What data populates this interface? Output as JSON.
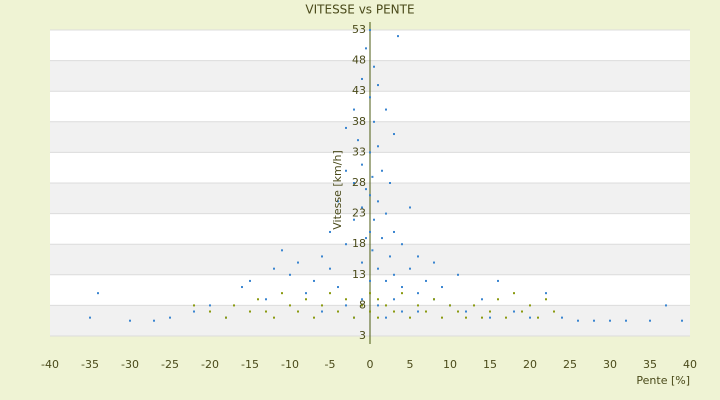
{
  "chart_data": {
    "type": "scatter",
    "title": "VITESSE vs PENTE",
    "x_label": "Pente [%]",
    "y_label": "Vitesse [km/h]",
    "xlim": [
      -40,
      40
    ],
    "xticks": [
      -40,
      -35,
      -30,
      -25,
      -20,
      -15,
      -10,
      -5,
      0,
      5,
      10,
      15,
      20,
      25,
      30,
      35,
      40
    ],
    "ylim": [
      3,
      53
    ],
    "yticks": [
      3,
      8,
      13,
      18,
      23,
      28,
      33,
      38,
      43,
      48,
      53
    ],
    "grid": true,
    "series": [
      {
        "color": "#3a85d0",
        "x": [
          -35,
          -34,
          -30,
          -27,
          -25,
          -22,
          -20,
          -18,
          -16,
          -15,
          -13,
          -12,
          -11,
          -10,
          -9,
          -8,
          -7,
          -6,
          -5,
          -5,
          -4,
          -4,
          -3,
          -3,
          -3,
          -2,
          -2,
          -2,
          -1.5,
          -1,
          -1,
          -1,
          -1,
          -0.5,
          -0.5,
          -0.5,
          0,
          0,
          0,
          0,
          0,
          0,
          0.3,
          0.3,
          0.5,
          0.5,
          0.5,
          1,
          1,
          1,
          1,
          1.5,
          1.5,
          2,
          2,
          2,
          2.5,
          2.5,
          3,
          3,
          3,
          3.5,
          4,
          4,
          5,
          5,
          6,
          6,
          7,
          8,
          8,
          9,
          10,
          11,
          12,
          14,
          15,
          16,
          18,
          20,
          22,
          24,
          26,
          28,
          30,
          32,
          35,
          37,
          39,
          -3,
          -2,
          -1,
          0,
          1,
          2,
          3,
          4,
          -6,
          6
        ],
        "values": [
          6,
          10,
          5.5,
          5.5,
          6,
          7,
          8,
          6,
          11,
          12,
          9,
          14,
          17,
          13,
          15,
          10,
          12,
          16,
          14,
          20,
          11,
          25,
          18,
          30,
          37,
          22,
          28,
          40,
          35,
          15,
          24,
          31,
          45,
          19,
          27,
          50,
          12,
          20,
          26,
          33,
          42,
          53,
          17,
          29,
          22,
          38,
          47,
          14,
          25,
          34,
          44,
          19,
          30,
          12,
          23,
          40,
          16,
          28,
          13,
          20,
          36,
          52,
          11,
          18,
          14,
          24,
          10,
          16,
          12,
          9,
          15,
          11,
          8,
          13,
          7,
          9,
          6,
          12,
          7,
          6,
          10,
          6,
          5.5,
          5.5,
          5.5,
          5.5,
          5.5,
          8,
          5.5,
          8,
          6,
          9,
          7,
          8,
          6,
          9,
          7,
          7,
          7
        ]
      },
      {
        "color": "#8a9a10",
        "x": [
          -22,
          -20,
          -18,
          -17,
          -15,
          -14,
          -12,
          -10,
          -9,
          -8,
          -7,
          -6,
          -5,
          -4,
          -3,
          -2,
          -1,
          0,
          0,
          1,
          1,
          2,
          3,
          4,
          5,
          6,
          7,
          8,
          9,
          10,
          11,
          12,
          13,
          15,
          16,
          17,
          18,
          19,
          20,
          21,
          22,
          23,
          -13,
          -11,
          14
        ],
        "values": [
          8,
          7,
          6,
          8,
          7,
          9,
          6,
          8,
          7,
          9,
          6,
          8,
          10,
          7,
          9,
          6,
          8,
          7,
          10,
          6,
          9,
          8,
          7,
          10,
          6,
          8,
          7,
          9,
          6,
          8,
          7,
          6,
          8,
          7,
          9,
          6,
          10,
          7,
          8,
          6,
          9,
          7,
          7,
          10,
          6
        ]
      }
    ]
  }
}
